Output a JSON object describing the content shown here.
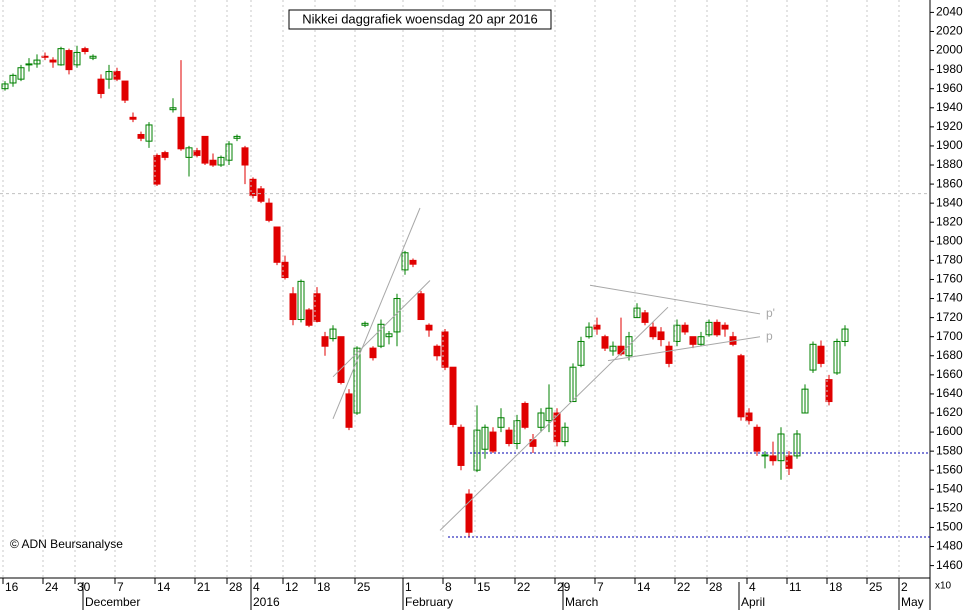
{
  "chart_data": {
    "type": "candlestick",
    "title": "Nikkei daggrafiek woensdag 20 apr 2016",
    "source": "© ADN Beursanalyse",
    "y_unit": "x10",
    "annotations": [
      "p'",
      "p"
    ],
    "categories": [
      "16",
      null,
      null,
      null,
      null,
      "24",
      null,
      null,
      null,
      "30",
      null,
      null,
      null,
      null,
      "7",
      null,
      null,
      null,
      null,
      "14",
      null,
      null,
      null,
      null,
      "21",
      null,
      null,
      null,
      "28",
      null,
      null,
      "4",
      null,
      null,
      null,
      "12",
      null,
      null,
      null,
      "18",
      null,
      null,
      null,
      null,
      "25",
      null,
      null,
      null,
      null,
      null,
      "1",
      null,
      null,
      null,
      null,
      "8",
      null,
      null,
      null,
      "15",
      null,
      null,
      null,
      null,
      "22",
      null,
      null,
      null,
      null,
      "29",
      null,
      null,
      null,
      null,
      "7",
      null,
      null,
      null,
      null,
      "14",
      null,
      null,
      null,
      null,
      "22",
      null,
      null,
      null,
      "28",
      null,
      null,
      null,
      null,
      "4",
      null,
      null,
      null,
      null,
      "11",
      null,
      null,
      null,
      null,
      "18",
      null,
      null,
      null,
      null,
      "25",
      null,
      null,
      null,
      "2"
    ],
    "months": [
      null,
      null,
      null,
      null,
      null,
      null,
      null,
      null,
      null,
      null,
      "December",
      null,
      null,
      null,
      null,
      null,
      null,
      null,
      null,
      null,
      null,
      null,
      null,
      null,
      null,
      null,
      null,
      null,
      null,
      null,
      null,
      "2016",
      null,
      null,
      null,
      null,
      null,
      null,
      null,
      null,
      null,
      null,
      null,
      null,
      null,
      null,
      null,
      null,
      null,
      null,
      "February",
      null,
      null,
      null,
      null,
      null,
      null,
      null,
      null,
      null,
      null,
      null,
      null,
      null,
      null,
      null,
      null,
      null,
      null,
      null,
      "March",
      null,
      null,
      null,
      null,
      null,
      null,
      null,
      null,
      null,
      null,
      null,
      null,
      null,
      null,
      null,
      null,
      null,
      null,
      null,
      null,
      null,
      "April",
      null,
      null,
      null,
      null,
      null,
      null,
      null,
      null,
      null,
      null,
      null,
      null,
      null,
      null,
      null,
      null,
      null,
      null,
      null,
      "May"
    ],
    "open": [
      1960,
      1966,
      1970,
      1985,
      1986,
      1994,
      1990,
      1985,
      2000,
      1985,
      2002,
      1992,
      1970,
      1970,
      1978,
      1968,
      1930,
      1912,
      1905,
      1890,
      1893,
      1938,
      1930,
      1888,
      1895,
      1910,
      1885,
      1880,
      1885,
      1908,
      1898,
      1865,
      1855,
      1840,
      1815,
      1778,
      1745,
      1718,
      1728,
      1745,
      1700,
      1698,
      1700,
      1640,
      1620,
      1712,
      1688,
      1690,
      1700,
      1705,
      1770,
      1780,
      1745,
      1712,
      1690,
      1705,
      1668,
      1605,
      1535,
      1560,
      1582,
      1600,
      1605,
      1602,
      1588,
      1630,
      1592,
      1605,
      1612,
      1620,
      1590,
      1632,
      1670,
      1700,
      1712,
      1700,
      1685,
      1690,
      1680,
      1720,
      1725,
      1710,
      1705,
      1690,
      1695,
      1712,
      1700,
      1692,
      1702,
      1715,
      1712,
      1700,
      1680,
      1620,
      1605,
      1575,
      1575,
      1570,
      1575,
      1575,
      1620,
      1665,
      1690,
      1655,
      1662,
      1695,
      null,
      null,
      null,
      null,
      null,
      null,
      null
    ],
    "high": [
      1968,
      1976,
      1985,
      1992,
      1996,
      1998,
      1993,
      2004,
      2002,
      2005,
      2004,
      1996,
      1975,
      1985,
      1982,
      1968,
      1935,
      1915,
      1925,
      1892,
      1895,
      1950,
      1990,
      1900,
      1898,
      1910,
      1892,
      1890,
      1905,
      1912,
      1900,
      1867,
      1858,
      1845,
      1815,
      1785,
      1752,
      1760,
      1730,
      1752,
      1705,
      1712,
      1700,
      1645,
      1690,
      1716,
      1690,
      1718,
      1706,
      1745,
      1790,
      1782,
      1748,
      1714,
      1692,
      1708,
      1668,
      1608,
      1540,
      1628,
      1608,
      1605,
      1625,
      1605,
      1618,
      1632,
      1598,
      1625,
      1650,
      1625,
      1610,
      1672,
      1700,
      1715,
      1720,
      1702,
      1695,
      1720,
      1705,
      1735,
      1728,
      1715,
      1710,
      1695,
      1718,
      1715,
      1700,
      1705,
      1718,
      1718,
      1715,
      1705,
      1682,
      1625,
      1608,
      1580,
      1590,
      1605,
      1580,
      1602,
      1650,
      1695,
      1696,
      1660,
      1698,
      1712,
      null,
      null,
      null,
      null,
      null,
      null,
      null
    ],
    "low": [
      1958,
      1962,
      1968,
      1978,
      1982,
      1990,
      1982,
      1984,
      1975,
      1982,
      1996,
      1990,
      1950,
      1960,
      1968,
      1945,
      1925,
      1905,
      1898,
      1858,
      1885,
      1935,
      1895,
      1868,
      1888,
      1880,
      1878,
      1878,
      1880,
      1905,
      1860,
      1845,
      1840,
      1820,
      1775,
      1760,
      1712,
      1715,
      1710,
      1715,
      1680,
      1695,
      1650,
      1602,
      1618,
      1710,
      1675,
      1688,
      1692,
      1690,
      1765,
      1773,
      1718,
      1700,
      1675,
      1665,
      1605,
      1560,
      1490,
      1558,
      1572,
      1578,
      1600,
      1585,
      1582,
      1603,
      1578,
      1600,
      1600,
      1585,
      1585,
      1632,
      1668,
      1698,
      1702,
      1685,
      1680,
      1680,
      1675,
      1720,
      1712,
      1697,
      1690,
      1668,
      1690,
      1702,
      1688,
      1690,
      1700,
      1700,
      1700,
      1690,
      1612,
      1608,
      1575,
      1562,
      1565,
      1550,
      1555,
      1572,
      1620,
      1662,
      1668,
      1628,
      1660,
      1690,
      null,
      null,
      null,
      null,
      null,
      null,
      null
    ],
    "close": [
      1965,
      1974,
      1982,
      1986,
      1990,
      1993,
      1988,
      2002,
      1980,
      1998,
      1999,
      1994,
      1955,
      1978,
      1970,
      1948,
      1928,
      1908,
      1922,
      1860,
      1888,
      1940,
      1897,
      1898,
      1890,
      1882,
      1880,
      1888,
      1902,
      1910,
      1880,
      1848,
      1842,
      1822,
      1778,
      1762,
      1718,
      1758,
      1712,
      1716,
      1690,
      1708,
      1652,
      1605,
      1688,
      1714,
      1678,
      1713,
      1703,
      1740,
      1788,
      1776,
      1718,
      1707,
      1680,
      1668,
      1608,
      1565,
      1495,
      1602,
      1605,
      1580,
      1615,
      1588,
      1612,
      1605,
      1585,
      1620,
      1625,
      1590,
      1605,
      1668,
      1695,
      1710,
      1708,
      1688,
      1690,
      1682,
      1700,
      1730,
      1715,
      1700,
      1697,
      1672,
      1712,
      1705,
      1692,
      1700,
      1715,
      1702,
      1708,
      1692,
      1616,
      1612,
      1580,
      1576,
      1570,
      1598,
      1562,
      1598,
      1645,
      1692,
      1672,
      1632,
      1695,
      1708,
      null,
      null,
      null,
      null,
      null,
      null,
      null
    ],
    "up_color": "#008000",
    "down_color": "#e00000",
    "ylim": [
      1447,
      2053
    ],
    "yticks": [
      1460,
      1480,
      1500,
      1520,
      1540,
      1560,
      1580,
      1600,
      1620,
      1640,
      1660,
      1680,
      1700,
      1720,
      1740,
      1760,
      1780,
      1800,
      1820,
      1840,
      1860,
      1880,
      1900,
      1920,
      1940,
      1960,
      1980,
      2000,
      2020,
      2040
    ],
    "grid": true,
    "hlines": [
      {
        "value": 1850,
        "color": "#c0c0c0"
      },
      {
        "value": 1578,
        "color": "#0000b0"
      },
      {
        "value": 1490,
        "color": "#0000b0"
      }
    ]
  }
}
